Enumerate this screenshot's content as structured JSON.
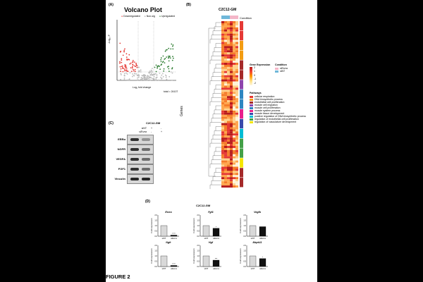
{
  "figure_label": "FIGURE 2",
  "panel_a": {
    "letter": "(A)",
    "title": "Volcano Plot",
    "legend": [
      "Downregulated",
      "Non-sig",
      "Upregulated"
    ],
    "xlabel": "Log₂ fold change",
    "ylabel": "-Log₁₀ P",
    "footnote": "total = 24107"
  },
  "panel_b": {
    "letter": "(B)",
    "title": "C2C12-GM",
    "condition_label": "Condition",
    "side_label": "Genes",
    "gene_expression_title": "Gene Expression",
    "scale_ticks": [
      "2",
      "1",
      "0",
      "-1",
      "-2"
    ],
    "condition_legend_title": "Condition",
    "condition_legend": [
      {
        "label": "siEsrra",
        "color": "#f4b6c8"
      },
      {
        "label": "siNT",
        "color": "#6fb7d9"
      }
    ],
    "pathways_title": "Pathways",
    "pathways": [
      {
        "label": "cellular respiration",
        "color": "#e53935"
      },
      {
        "label": "DNA biosynthetic process",
        "color": "#f39c12"
      },
      {
        "label": "endothelial cell proliferation",
        "color": "#a52a2a"
      },
      {
        "label": "muscle cell migration",
        "color": "#8e44ad"
      },
      {
        "label": "muscle cell proliferation",
        "color": "#2e86c1"
      },
      {
        "label": "muscle system process",
        "color": "#e91e8c"
      },
      {
        "label": "muscle tissue development",
        "color": "#3949ab"
      },
      {
        "label": "positive regulation of DNA biosynthetic process",
        "color": "#00bcd4"
      },
      {
        "label": "regulation of endothelial cell proliferation",
        "color": "#43a047"
      },
      {
        "label": "regulation of vasculature development",
        "color": "#f5e600"
      }
    ]
  },
  "panel_c": {
    "letter": "(C)",
    "title": "C2C12-GM",
    "row1_label": "siNT",
    "row2_label": "siEsrra",
    "row1_marks": [
      "+",
      "-"
    ],
    "row2_marks": [
      "-",
      "+"
    ],
    "blots": [
      "ERRα",
      "NGFR",
      "VEGFA",
      "FGF1",
      "Vinculin"
    ]
  },
  "panel_d": {
    "letter": "(D)",
    "title": "C2C12-GM",
    "ylabel": "Fold expression",
    "plots": [
      {
        "gene": "Esrra",
        "categories": [
          "siNT",
          "siEsrra"
        ],
        "values": [
          1.0,
          0.1
        ],
        "sig": "****"
      },
      {
        "gene": "Fgf1",
        "categories": [
          "siNT",
          "siEsrra"
        ],
        "values": [
          1.0,
          0.75
        ],
        "sig": "*"
      },
      {
        "gene": "Vegfb",
        "categories": [
          "siNT",
          "siEsrra"
        ],
        "values": [
          1.0,
          0.9
        ],
        "sig": ""
      },
      {
        "gene": "Ngfr",
        "categories": [
          "siNT",
          "siEsrra"
        ],
        "values": [
          1.0,
          0.1
        ],
        "sig": "****"
      },
      {
        "gene": "Hgf",
        "categories": [
          "siNT",
          "siEsrra"
        ],
        "values": [
          1.0,
          0.6
        ],
        "sig": "***"
      },
      {
        "gene": "Mapk11",
        "categories": [
          "siNT",
          "siEsrra"
        ],
        "values": [
          1.0,
          0.75
        ],
        "sig": "*"
      }
    ],
    "yticks": [
      "0.0",
      "0.5",
      "1.0",
      "1.5",
      "2.0"
    ]
  },
  "chart_data": {
    "type": "bar",
    "title": "C2C12-GM",
    "ylabel": "Fold expression",
    "ylim": [
      0,
      2.0
    ],
    "categories": [
      "siNT",
      "siEsrra"
    ],
    "series": [
      {
        "name": "Esrra",
        "values": [
          1.0,
          0.1
        ]
      },
      {
        "name": "Fgf1",
        "values": [
          1.0,
          0.75
        ]
      },
      {
        "name": "Vegfb",
        "values": [
          1.0,
          0.9
        ]
      },
      {
        "name": "Ngfr",
        "values": [
          1.0,
          0.1
        ]
      },
      {
        "name": "Hgf",
        "values": [
          1.0,
          0.6
        ]
      },
      {
        "name": "Mapk11",
        "values": [
          1.0,
          0.75
        ]
      }
    ]
  }
}
